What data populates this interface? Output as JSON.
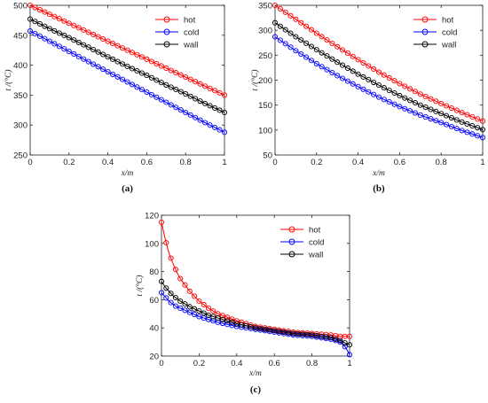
{
  "chart_data": [
    {
      "type": "line",
      "panel_label": "(a)",
      "xlabel": "x/m",
      "ylabel": "t /(°C)",
      "xlim": [
        0,
        1
      ],
      "ylim": [
        250,
        500
      ],
      "xticks": [
        0,
        0.2,
        0.4,
        0.6,
        0.8,
        1
      ],
      "xtick_labels": [
        "0",
        "0.2",
        "0.4",
        "0.6",
        "0.8",
        "1"
      ],
      "yticks": [
        250,
        300,
        350,
        400,
        450,
        500
      ],
      "ytick_labels": [
        "250",
        "300",
        "350",
        "400",
        "450",
        "500"
      ],
      "legend_position": "top-right",
      "x": [
        0,
        0.1,
        0.2,
        0.3,
        0.4,
        0.5,
        0.6,
        0.7,
        0.8,
        0.9,
        1.0
      ],
      "series": [
        {
          "name": "hot",
          "color": "#ff0000",
          "values": [
            500,
            485,
            470,
            455,
            440,
            425,
            410,
            395,
            380,
            365,
            350
          ]
        },
        {
          "name": "cold",
          "color": "#0000ff",
          "values": [
            457,
            440,
            423,
            406,
            389,
            372,
            355,
            338,
            321,
            304,
            288
          ]
        },
        {
          "name": "wall",
          "color": "#000000",
          "values": [
            477,
            461,
            446,
            430,
            414,
            398,
            383,
            367,
            352,
            336,
            321
          ]
        }
      ]
    },
    {
      "type": "line",
      "panel_label": "(b)",
      "xlabel": "x/m",
      "ylabel": "t /(°C)",
      "xlim": [
        0,
        1
      ],
      "ylim": [
        50,
        350
      ],
      "xticks": [
        0,
        0.2,
        0.4,
        0.6,
        0.8,
        1
      ],
      "xtick_labels": [
        "0",
        "0.2",
        "0.4",
        "0.6",
        "0.8",
        "1"
      ],
      "yticks": [
        50,
        100,
        150,
        200,
        250,
        300,
        350
      ],
      "ytick_labels": [
        "50",
        "100",
        "150",
        "200",
        "250",
        "300",
        "350"
      ],
      "legend_position": "top-right",
      "x": [
        0,
        0.1,
        0.2,
        0.3,
        0.4,
        0.5,
        0.6,
        0.7,
        0.8,
        0.9,
        1.0
      ],
      "series": [
        {
          "name": "hot",
          "color": "#ff0000",
          "values": [
            350,
            322,
            294,
            267,
            241,
            216,
            193,
            172,
            153,
            135,
            118
          ]
        },
        {
          "name": "cold",
          "color": "#0000ff",
          "values": [
            287,
            259,
            233,
            209,
            187,
            166,
            147,
            130,
            115,
            99,
            85
          ]
        },
        {
          "name": "wall",
          "color": "#000000",
          "values": [
            315,
            287,
            261,
            236,
            212,
            190,
            169,
            150,
            133,
            116,
            101
          ]
        }
      ]
    },
    {
      "type": "line",
      "panel_label": "(c)",
      "xlabel": "x/m",
      "ylabel": "t /(°C)",
      "xlim": [
        0,
        1
      ],
      "ylim": [
        20,
        120
      ],
      "xticks": [
        0,
        0.2,
        0.4,
        0.6,
        0.8,
        1
      ],
      "xtick_labels": [
        "0",
        "0.2",
        "0.4",
        "0.6",
        "0.8",
        "1"
      ],
      "yticks": [
        20,
        40,
        60,
        80,
        100,
        120
      ],
      "ytick_labels": [
        "20",
        "40",
        "60",
        "80",
        "100",
        "120"
      ],
      "legend_position": "top-right",
      "x": [
        0,
        0.02,
        0.04,
        0.06,
        0.08,
        0.1,
        0.15,
        0.2,
        0.25,
        0.3,
        0.4,
        0.5,
        0.6,
        0.7,
        0.8,
        0.9,
        0.95,
        0.98,
        1.0
      ],
      "series": [
        {
          "name": "hot",
          "color": "#ff0000",
          "values": [
            115,
            103,
            93,
            86,
            80,
            75,
            66,
            59,
            54,
            50,
            45,
            41,
            39,
            37,
            36,
            35,
            34,
            34,
            34
          ]
        },
        {
          "name": "cold",
          "color": "#0000ff",
          "values": [
            65,
            62,
            59,
            57,
            55,
            54,
            51,
            48,
            46,
            44,
            41,
            39,
            37,
            35,
            34,
            32,
            30,
            26,
            21
          ]
        },
        {
          "name": "wall",
          "color": "#000000",
          "values": [
            73,
            69,
            66,
            63,
            61,
            59,
            55,
            52,
            49,
            47,
            43,
            40,
            38,
            36,
            35,
            33,
            31,
            29,
            28
          ]
        }
      ]
    }
  ]
}
